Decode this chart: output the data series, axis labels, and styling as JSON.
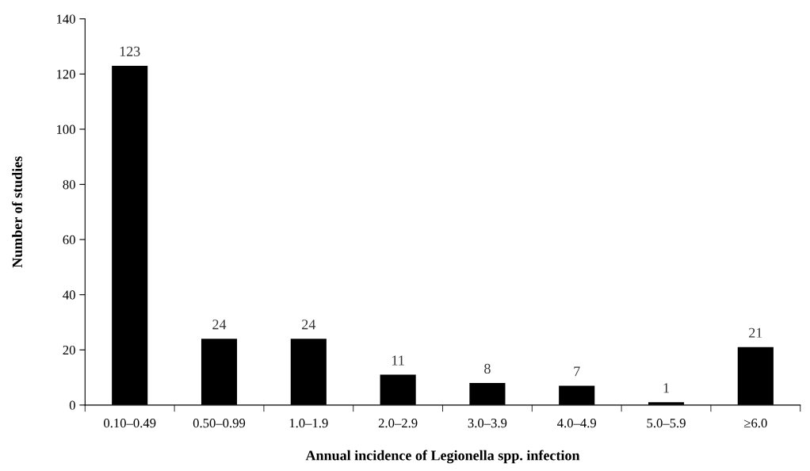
{
  "chart_data": {
    "type": "bar",
    "xlabel": "Annual incidence of Legionella spp. infection",
    "ylabel": "Number of studies",
    "categories": [
      "0.10–0.49",
      "0.50–0.99",
      "1.0–1.9",
      "2.0–2.9",
      "3.0–3.9",
      "4.0–4.9",
      "5.0–5.9",
      "≥6.0"
    ],
    "values": [
      123,
      24,
      24,
      11,
      8,
      7,
      1,
      21
    ],
    "color": "#000000",
    "ylim": [
      0,
      140
    ],
    "yticks": [
      0,
      20,
      40,
      60,
      80,
      100,
      120,
      140
    ],
    "grid": false,
    "data_labels": true
  }
}
